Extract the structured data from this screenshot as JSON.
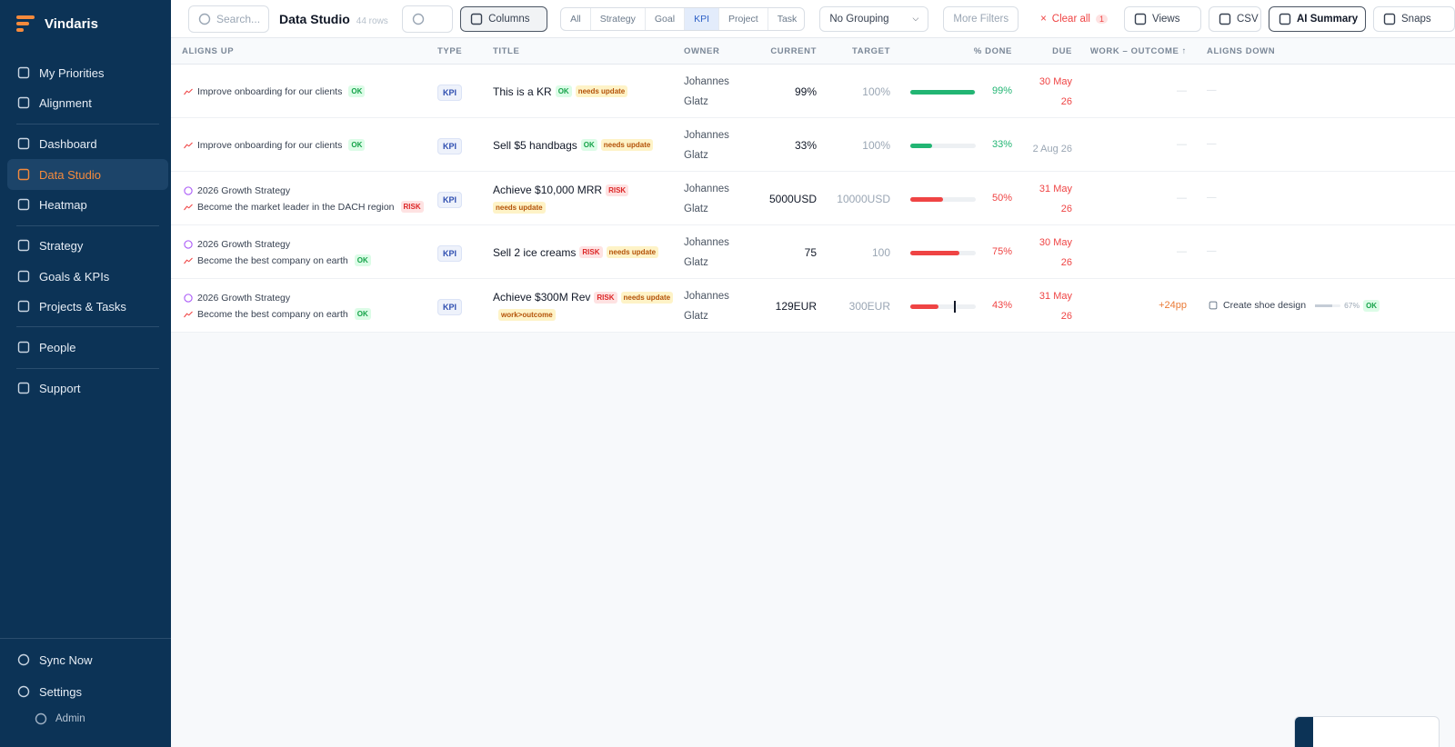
{
  "sidebar": {
    "brand": "Vindaris",
    "active_nav": "Data Studio",
    "nav_groups": [
      [
        "My Priorities",
        "Alignment"
      ],
      [
        "Dashboard",
        "Data Studio",
        "Heatmap"
      ],
      [
        "Strategy",
        "Goals & KPIs",
        "Projects & Tasks"
      ],
      [
        "People"
      ],
      [
        "Support"
      ]
    ],
    "footer": [
      "Sync Now",
      "Settings"
    ],
    "role": "Admin"
  },
  "toolbar": {
    "search_placeholder": "Search...",
    "title": "Data Studio",
    "row_count": "44 rows",
    "columns_button": "Columns",
    "type_tabs": [
      "All",
      "Strategy",
      "Goal",
      "KPI",
      "Project",
      "Task"
    ],
    "active_tab": "KPI",
    "grouping": "No Grouping",
    "more_filters": "More Filters",
    "clear_all": "Clear all",
    "clear_count": "1",
    "views": "Views",
    "csv": "CSV",
    "ai_summary": "AI Summary",
    "snapshot": "Snaps"
  },
  "table": {
    "headers": [
      "ALIGNS UP",
      "TYPE",
      "TITLE",
      "OWNER",
      "CURRENT",
      "TARGET",
      "% DONE",
      "DUE",
      "WORK – OUTCOME ↑",
      "ALIGNS DOWN"
    ],
    "rows": [
      {
        "aligns_up": [
          {
            "kind": "goal",
            "text": "Improve onboarding for our clients",
            "badge": {
              "text": "OK",
              "tone": "ok"
            }
          }
        ],
        "type": "KPI",
        "title": "This is a KR",
        "title_badges": [
          {
            "text": "OK",
            "tone": "ok"
          },
          {
            "text": "needs update",
            "tone": "warn"
          }
        ],
        "owner": "Johannes Glatz",
        "current": "99%",
        "target": "100%",
        "done": 99,
        "done_label": "99%",
        "tone": "ok",
        "due": "30 May 26",
        "due_overdue": true,
        "work_outcome": {
          "text": "—"
        },
        "aligns_down": {
          "text": "—"
        }
      },
      {
        "aligns_up": [
          {
            "kind": "goal",
            "text": "Improve onboarding for our clients",
            "badge": {
              "text": "OK",
              "tone": "ok"
            }
          }
        ],
        "type": "KPI",
        "title": "Sell $5 handbags",
        "title_badges": [
          {
            "text": "OK",
            "tone": "ok"
          },
          {
            "text": "needs update",
            "tone": "warn"
          }
        ],
        "owner": "Johannes Glatz",
        "current": "33%",
        "target": "100%",
        "done": 33,
        "done_label": "33%",
        "tone": "ok",
        "due": "2 Aug 26",
        "due_overdue": false,
        "work_outcome": {
          "text": "—"
        },
        "aligns_down": {
          "text": "—"
        }
      },
      {
        "aligns_up": [
          {
            "kind": "strategy",
            "text": "2026 Growth Strategy"
          },
          {
            "kind": "goal",
            "text": "Become the market leader in the DACH region",
            "badge": {
              "text": "RISK",
              "tone": "risk"
            }
          }
        ],
        "type": "KPI",
        "title": "Achieve $10,000 MRR",
        "title_badges": [
          {
            "text": "RISK",
            "tone": "risk"
          },
          {
            "text": "needs update",
            "tone": "warn"
          }
        ],
        "owner": "Johannes Glatz",
        "current": "5000USD",
        "target": "10000USD",
        "done": 50,
        "done_label": "50%",
        "tone": "risk",
        "due": "31 May 26",
        "due_overdue": true,
        "work_outcome": {
          "text": "—"
        },
        "aligns_down": {
          "text": "—"
        }
      },
      {
        "aligns_up": [
          {
            "kind": "strategy",
            "text": "2026 Growth Strategy"
          },
          {
            "kind": "goal",
            "text": "Become the best company on earth",
            "badge": {
              "text": "OK",
              "tone": "ok"
            }
          }
        ],
        "type": "KPI",
        "title": "Sell 2 ice creams",
        "title_badges": [
          {
            "text": "RISK",
            "tone": "risk"
          },
          {
            "text": "needs update",
            "tone": "warn"
          }
        ],
        "owner": "Johannes Glatz",
        "current": "75",
        "target": "100",
        "done": 75,
        "done_label": "75%",
        "tone": "risk",
        "due": "30 May 26",
        "due_overdue": true,
        "work_outcome": {
          "text": "—"
        },
        "aligns_down": {
          "text": "—"
        }
      },
      {
        "aligns_up": [
          {
            "kind": "strategy",
            "text": "2026 Growth Strategy"
          },
          {
            "kind": "goal",
            "text": "Become the best company on earth",
            "badge": {
              "text": "OK",
              "tone": "ok"
            }
          }
        ],
        "type": "KPI",
        "title": "Achieve $300M Rev",
        "title_badges": [
          {
            "text": "RISK",
            "tone": "risk"
          },
          {
            "text": "needs update",
            "tone": "warn"
          },
          {
            "text": "work>outcome",
            "tone": "warn"
          }
        ],
        "owner": "Johannes Glatz",
        "current": "129EUR",
        "target": "300EUR",
        "done": 43,
        "done_label": "43%",
        "pace_marker": 67,
        "tone": "risk",
        "due": "31 May 26",
        "due_overdue": true,
        "work_outcome": {
          "text": "+24pp",
          "tone": "warn"
        },
        "aligns_down": {
          "text": "Create shoe design",
          "done": 67,
          "done_label": "67%",
          "badge": {
            "text": "OK",
            "tone": "ok"
          }
        }
      }
    ]
  }
}
